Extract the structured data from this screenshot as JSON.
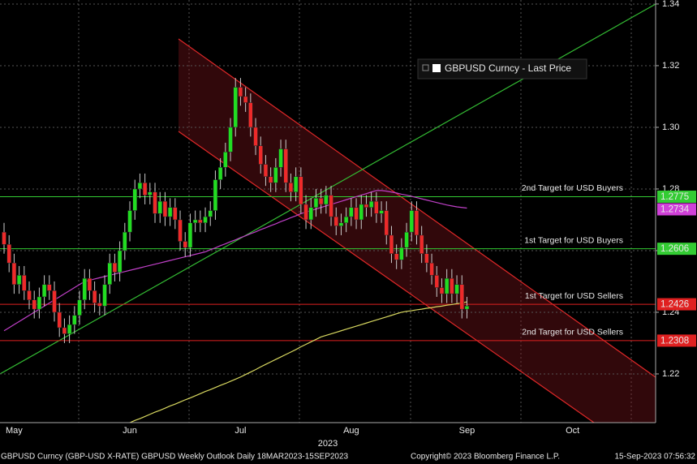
{
  "chart_data": {
    "type": "candlestick",
    "xlabel": "2023",
    "footer_left": "GBPUSD Curncy (GBP-USD X-RATE) GBPUSD Weekly Outlook  Daily 18MAR2023-15SEP2023",
    "footer_center": "Copyright© 2023 Bloomberg Finance L.P.",
    "footer_right": "15-Sep-2023 07:56:32",
    "ylim": [
      1.2042,
      1.3413
    ],
    "yticks": [
      1.22,
      1.24,
      1.26,
      1.28,
      {
        "value": 1.3,
        "label": "1.30"
      },
      1.32,
      1.34
    ],
    "grid": true,
    "categories": [
      null,
      null,
      "May",
      null,
      null,
      null,
      null,
      null,
      null,
      null,
      null,
      null,
      null,
      null,
      null,
      null,
      null,
      null,
      null,
      null,
      null,
      null,
      null,
      null,
      null,
      "Jun",
      null,
      null,
      null,
      null,
      null,
      null,
      null,
      null,
      null,
      null,
      null,
      null,
      null,
      null,
      null,
      null,
      null,
      null,
      null,
      null,
      null,
      "Jul",
      null,
      null,
      null,
      null,
      null,
      null,
      null,
      null,
      null,
      null,
      null,
      null,
      null,
      null,
      null,
      null,
      null,
      null,
      null,
      null,
      null,
      "Aug",
      null,
      null,
      null,
      null,
      null,
      null,
      null,
      null,
      null,
      null,
      null,
      null,
      null,
      null,
      null,
      null,
      null,
      null,
      null,
      null,
      null,
      null,
      "Sep",
      null,
      null,
      null,
      null,
      null,
      null,
      null,
      null,
      null,
      null,
      null,
      null,
      null,
      null,
      null,
      null,
      null,
      null,
      null,
      null,
      "Oct",
      null,
      null,
      null,
      null,
      null,
      null,
      null,
      null,
      null,
      null,
      null,
      null,
      null,
      null,
      null,
      null
    ],
    "series": [
      {
        "name": "GBPUSD Curncy - Last Price",
        "up_color": "#22dd22",
        "down_color": "#ee2a2a",
        "open": [
          1.266,
          1.262,
          1.256,
          1.249,
          1.252,
          1.247,
          1.244,
          1.241,
          1.245,
          1.249,
          1.247,
          1.24,
          1.235,
          1.233,
          1.236,
          1.239,
          1.244,
          1.251,
          1.247,
          1.243,
          1.242,
          1.249,
          1.256,
          1.253,
          1.26,
          1.266,
          1.273,
          1.28,
          1.282,
          1.278,
          1.279,
          1.272,
          1.276,
          1.271,
          1.274,
          1.27,
          1.263,
          1.261,
          1.269,
          1.27,
          1.269,
          1.271,
          1.273,
          1.283,
          1.287,
          1.292,
          1.3,
          1.313,
          1.31,
          1.308,
          1.3,
          1.294,
          1.288,
          1.284,
          1.282,
          1.287,
          1.293,
          1.282,
          1.279,
          1.284,
          1.275,
          1.27,
          1.274,
          1.277,
          1.275,
          1.278,
          1.271,
          1.268,
          1.269,
          1.271,
          1.274,
          1.27,
          1.275,
          1.274,
          1.276,
          1.272,
          1.273,
          1.265,
          1.259,
          1.257,
          1.261,
          1.266,
          1.273,
          1.265,
          1.259,
          1.256,
          1.252,
          1.248,
          1.246,
          1.251,
          1.246,
          1.249,
          1.241,
          null,
          null,
          null,
          null,
          null,
          null,
          null,
          null,
          null,
          null,
          null,
          null,
          null,
          null,
          null,
          null,
          null,
          null,
          null,
          null,
          null,
          null,
          null,
          null,
          null,
          null,
          null,
          null,
          null,
          null,
          null,
          null,
          null,
          null,
          null,
          null,
          null
        ],
        "high": [
          1.269,
          1.265,
          1.259,
          1.255,
          1.255,
          1.25,
          1.247,
          1.248,
          1.252,
          1.252,
          1.25,
          1.243,
          1.238,
          1.239,
          1.242,
          1.247,
          1.254,
          1.254,
          1.25,
          1.246,
          1.252,
          1.259,
          1.259,
          1.263,
          1.269,
          1.276,
          1.283,
          1.285,
          1.285,
          1.282,
          1.282,
          1.279,
          1.279,
          1.277,
          1.277,
          1.273,
          1.266,
          1.272,
          1.273,
          1.273,
          1.274,
          1.276,
          1.286,
          1.29,
          1.295,
          1.303,
          1.316,
          1.316,
          1.313,
          1.311,
          1.303,
          1.297,
          1.291,
          1.287,
          1.29,
          1.296,
          1.296,
          1.285,
          1.287,
          1.287,
          1.278,
          1.277,
          1.28,
          1.28,
          1.281,
          1.281,
          1.274,
          1.272,
          1.274,
          1.277,
          1.277,
          1.278,
          1.278,
          1.279,
          1.279,
          1.276,
          1.276,
          1.268,
          1.262,
          1.264,
          1.269,
          1.276,
          1.276,
          1.268,
          1.262,
          1.259,
          1.255,
          1.251,
          1.254,
          1.254,
          1.252,
          1.252,
          1.245,
          null,
          null,
          null,
          null,
          null,
          null,
          null,
          null,
          null,
          null,
          null,
          null,
          null,
          null,
          null,
          null,
          null,
          null,
          null,
          null,
          null,
          null,
          null,
          null,
          null,
          null,
          null,
          null,
          null,
          null,
          null,
          null,
          null,
          null,
          null,
          null,
          null
        ],
        "low": [
          1.259,
          1.253,
          1.246,
          1.246,
          1.244,
          1.241,
          1.238,
          1.238,
          1.242,
          1.244,
          1.237,
          1.232,
          1.23,
          1.23,
          1.233,
          1.236,
          1.241,
          1.244,
          1.24,
          1.239,
          1.239,
          1.246,
          1.25,
          1.25,
          1.257,
          1.263,
          1.27,
          1.277,
          1.275,
          1.275,
          1.269,
          1.269,
          1.268,
          1.268,
          1.267,
          1.26,
          1.258,
          1.258,
          1.266,
          1.266,
          1.266,
          1.268,
          1.27,
          1.28,
          1.284,
          1.289,
          1.297,
          1.307,
          1.305,
          1.297,
          1.291,
          1.285,
          1.281,
          1.279,
          1.279,
          1.284,
          1.279,
          1.276,
          1.276,
          1.272,
          1.267,
          1.267,
          1.271,
          1.272,
          1.272,
          1.268,
          1.265,
          1.265,
          1.266,
          1.268,
          1.267,
          1.267,
          1.271,
          1.271,
          1.269,
          1.269,
          1.262,
          1.256,
          1.254,
          1.254,
          1.258,
          1.263,
          1.262,
          1.256,
          1.253,
          1.249,
          1.245,
          1.243,
          1.243,
          1.243,
          1.243,
          1.238,
          1.238,
          null,
          null,
          null,
          null,
          null,
          null,
          null,
          null,
          null,
          null,
          null,
          null,
          null,
          null,
          null,
          null,
          null,
          null,
          null,
          null,
          null,
          null,
          null,
          null,
          null,
          null,
          null,
          null,
          null,
          null,
          null,
          null,
          null,
          null,
          null,
          null,
          null
        ],
        "close": [
          1.262,
          1.256,
          1.249,
          1.252,
          1.247,
          1.244,
          1.241,
          1.245,
          1.249,
          1.247,
          1.24,
          1.235,
          1.233,
          1.236,
          1.239,
          1.244,
          1.251,
          1.247,
          1.243,
          1.242,
          1.249,
          1.256,
          1.253,
          1.26,
          1.266,
          1.273,
          1.28,
          1.282,
          1.278,
          1.279,
          1.272,
          1.276,
          1.271,
          1.274,
          1.27,
          1.263,
          1.261,
          1.269,
          1.27,
          1.269,
          1.271,
          1.273,
          1.283,
          1.287,
          1.292,
          1.3,
          1.313,
          1.31,
          1.308,
          1.3,
          1.294,
          1.288,
          1.284,
          1.282,
          1.287,
          1.293,
          1.282,
          1.279,
          1.284,
          1.275,
          1.27,
          1.274,
          1.277,
          1.275,
          1.278,
          1.271,
          1.268,
          1.269,
          1.271,
          1.274,
          1.27,
          1.275,
          1.274,
          1.276,
          1.272,
          1.273,
          1.265,
          1.259,
          1.257,
          1.261,
          1.266,
          1.273,
          1.265,
          1.259,
          1.256,
          1.252,
          1.248,
          1.246,
          1.251,
          1.246,
          1.249,
          1.241,
          1.242,
          null,
          null,
          null,
          null,
          null,
          null,
          null,
          null,
          null,
          null,
          null,
          null,
          null,
          null,
          null,
          null,
          null,
          null,
          null,
          null,
          null,
          null,
          null,
          null,
          null,
          null,
          null,
          null,
          null,
          null,
          null,
          null,
          null,
          null,
          null,
          null,
          null
        ]
      }
    ],
    "lines": [
      {
        "color": "#c040c8",
        "values": [
          1.234,
          1.235,
          1.236,
          1.237,
          1.238,
          1.239,
          1.24,
          1.241,
          1.242,
          1.243,
          1.244,
          1.245,
          1.246,
          1.247,
          1.248,
          1.249,
          1.25,
          1.2504,
          1.2508,
          1.2512,
          1.2516,
          1.252,
          1.2524,
          1.2528,
          1.2532,
          1.2536,
          1.254,
          1.2544,
          1.2548,
          1.2552,
          1.2556,
          1.256,
          1.2564,
          1.2568,
          1.2572,
          1.2576,
          1.258,
          1.2584,
          1.2588,
          1.2592,
          1.2596,
          1.2603,
          1.2609,
          1.2616,
          1.2622,
          1.2629,
          1.2635,
          1.2642,
          1.2648,
          1.2655,
          1.2661,
          1.2668,
          1.2674,
          1.2681,
          1.2687,
          1.2694,
          1.27,
          1.2707,
          1.2713,
          1.272,
          1.2725,
          1.273,
          1.2735,
          1.274,
          1.2745,
          1.275,
          1.2755,
          1.276,
          1.2765,
          1.277,
          1.2775,
          1.278,
          1.2785,
          1.279,
          1.2795,
          1.2795,
          1.2793,
          1.279,
          1.2787,
          1.2783,
          1.278,
          1.2776,
          1.2772,
          1.2768,
          1.2764,
          1.276,
          1.2756,
          1.2752,
          1.2748,
          1.2745,
          1.2742,
          1.274,
          1.2738,
          null,
          null,
          null,
          null,
          null,
          null,
          null,
          null,
          null,
          null,
          null,
          null,
          null,
          null,
          null,
          null,
          null,
          null,
          null,
          null,
          null,
          null,
          null,
          null,
          null,
          null,
          null,
          null,
          null,
          null,
          null,
          null,
          null,
          null,
          null,
          null,
          null
        ]
      },
      {
        "color": "#d8d860",
        "values": [
          null,
          null,
          null,
          null,
          null,
          null,
          null,
          null,
          null,
          null,
          null,
          null,
          null,
          null,
          null,
          null,
          null,
          null,
          null,
          null,
          null,
          null,
          null,
          null,
          null,
          1.2042,
          1.2049,
          1.2055,
          1.2062,
          1.2069,
          1.2076,
          1.2082,
          1.2089,
          1.2096,
          1.2102,
          1.2109,
          1.2116,
          1.2122,
          1.2129,
          1.2136,
          1.2143,
          1.2149,
          1.2156,
          1.2163,
          1.2169,
          1.2176,
          1.2183,
          1.219,
          1.2198,
          1.2206,
          1.2214,
          1.2223,
          1.2231,
          1.2239,
          1.2247,
          1.2255,
          1.2263,
          1.2271,
          1.2279,
          1.2288,
          1.2296,
          1.2304,
          1.2312,
          1.232,
          1.2325,
          1.233,
          1.2335,
          1.234,
          1.2345,
          1.235,
          1.2355,
          1.236,
          1.2365,
          1.237,
          1.2375,
          1.238,
          1.2385,
          1.239,
          1.2395,
          1.24,
          1.2403,
          1.2405,
          1.2408,
          1.241,
          1.2413,
          1.2415,
          1.2418,
          1.242,
          1.2423,
          1.2425,
          1.2428,
          1.243,
          1.2434,
          null,
          null,
          null,
          null,
          null,
          null,
          null,
          null,
          null,
          null,
          null,
          null,
          null,
          null,
          null,
          null,
          null,
          null,
          null,
          null,
          null,
          null,
          null,
          null,
          null,
          null,
          null,
          null,
          null,
          null,
          null,
          null,
          null,
          null,
          null,
          null,
          null
        ]
      }
    ],
    "levels": [
      {
        "value": 1.2775,
        "label": "2nd Target for USD Buyers",
        "color": "#33cc33",
        "text_color": "#000000"
      },
      {
        "value": 1.2734,
        "color": "#d040d8",
        "text_color": "#ffffff"
      },
      {
        "value": 1.2606,
        "label": "1st Target for USD Buyers",
        "color": "#33cc33",
        "text_color": "#000000"
      },
      {
        "value": 1.2426,
        "label": "1st Target for USD Sellers",
        "color": "#e02020",
        "text_color": "#ffffff"
      },
      {
        "value": 1.2308,
        "label": "2nd Target for USD Sellers",
        "color": "#e02020",
        "text_color": "#ffffff"
      }
    ]
  }
}
